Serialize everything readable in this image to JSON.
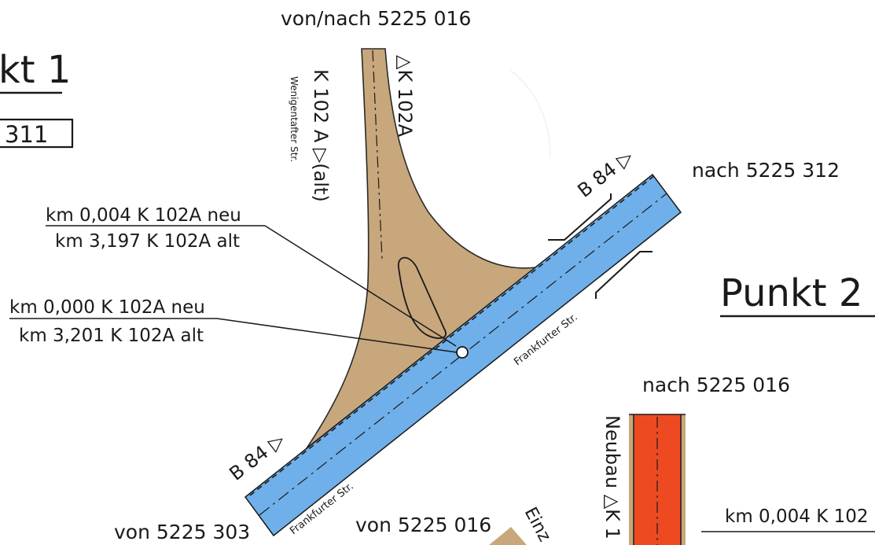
{
  "map": {
    "top_label": "von/nach 5225 016",
    "right_label": "nach 5225 312",
    "mid_right_label": "nach 5225 016",
    "bottom_left_label": "von 5225 303",
    "bottom_mid_label": "von 5225 016",
    "punkt1_fragment": "kt 1",
    "box_fragment": "311",
    "punkt2": "Punkt 2",
    "k102_right": "△K 102A",
    "k102_left": "K 102 A ▷(alt)",
    "street_wenigen": "Wenigentafter Str.",
    "b84_top": "B 84 ▷",
    "b84_bottom": "B 84 ▷",
    "frankfurter_upper": "Frankfurter Str.",
    "frankfurter_lower": "Frankfurter Str.",
    "callout_1_top": "km 0,004 K 102A neu",
    "callout_1_bottom": "km 3,197 K 102A alt",
    "callout_2_top": "km 0,000 K 102A neu",
    "callout_2_bottom": "km 3,201 K 102A alt",
    "neubau_label": "Neubau △K 1",
    "einz_fragment": "Einz",
    "callout_3_top_fragment": "km 0,004 K 102",
    "colors": {
      "road_tan": "#c8a77c",
      "b84_blue": "#6fb0ea",
      "neubau_red": "#ee4a22",
      "line": "#1a1a1a"
    }
  }
}
